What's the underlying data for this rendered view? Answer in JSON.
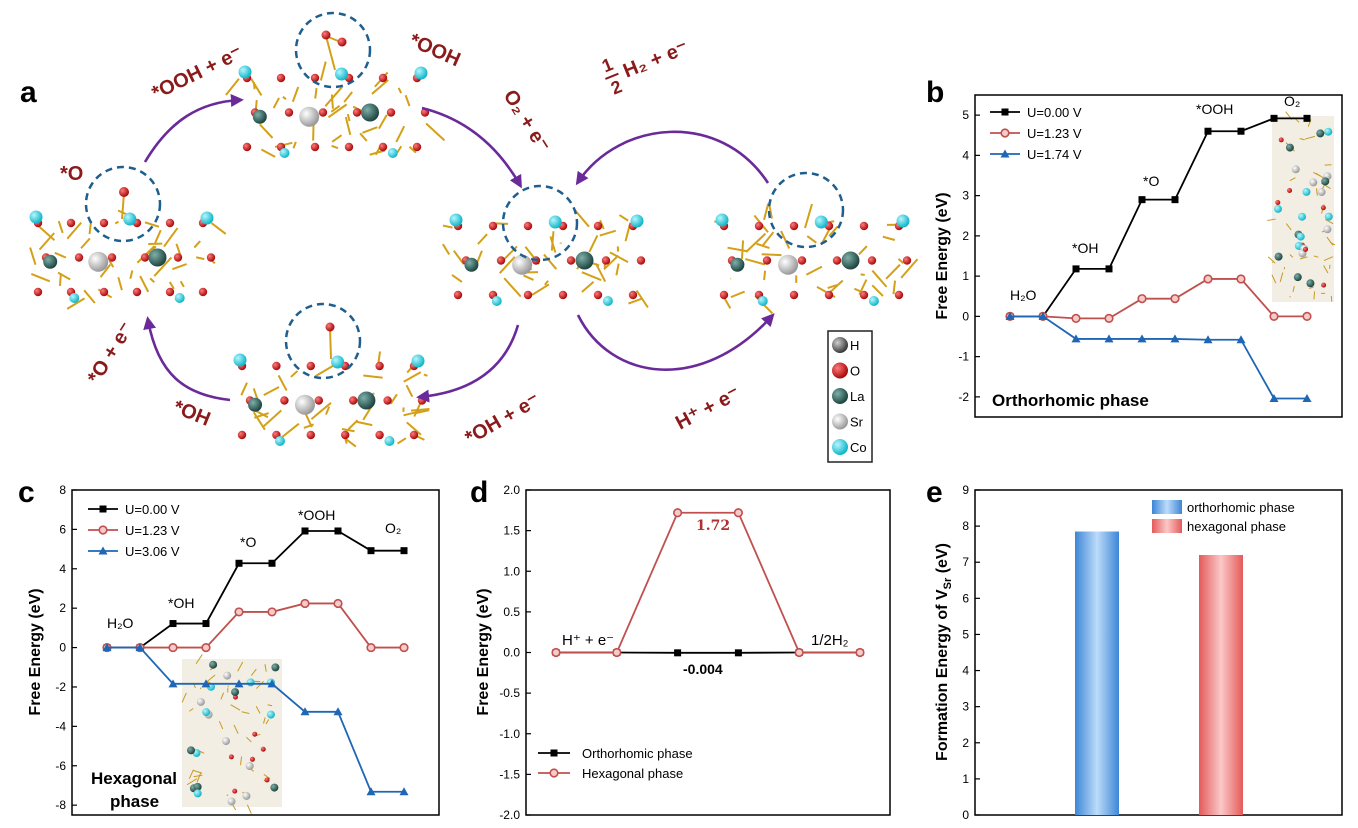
{
  "panel_labels": {
    "a": "a",
    "b": "b",
    "c": "c",
    "d": "d",
    "e": "e"
  },
  "colors": {
    "black_series": "#000000",
    "red_series": "#c0504d",
    "blue_series": "#1f66b5",
    "arrow": "#6a2a9a",
    "annotation_red": "#8b1a1a",
    "la_atom": "#2f5f5a",
    "sr_atom": "#c8c8c8",
    "co_atom": "#19d3e3",
    "o_atom": "#d81818",
    "bond": "#d4a017"
  },
  "panel_a": {
    "step_labels": {
      "ooh_plus_e_left": "*OOH + e⁻",
      "ooh_top": "*OOH",
      "o2_plus_e": "O₂ + e⁻",
      "o_left": "*O",
      "o_plus_e": "*O + e⁻",
      "oh_bottom": "*OH",
      "oh_plus_e": "*OH + e⁻",
      "half_h2_num": "1",
      "half_h2_den": "2",
      "half_h2_rest": "H₂ + e⁻",
      "h_plus_e": "H⁺ + e⁻"
    },
    "legend": [
      {
        "symbol": "H",
        "color": "#6e6e6e"
      },
      {
        "symbol": "O",
        "color": "#d81818"
      },
      {
        "symbol": "La",
        "color": "#2f5f5a"
      },
      {
        "symbol": "Sr",
        "color": "#c8c8c8"
      },
      {
        "symbol": "Co",
        "color": "#19d3e3"
      }
    ]
  },
  "chart_data": [
    {
      "panel": "b",
      "type": "line",
      "ylabel": "Free Energy (eV)",
      "xlabel": "",
      "ylim": [
        -2.5,
        5.5
      ],
      "yticks": [
        -2,
        -1,
        0,
        1,
        2,
        3,
        4,
        5
      ],
      "x": [
        1,
        2,
        3,
        4,
        5,
        6,
        7,
        8,
        9,
        10
      ],
      "series": [
        {
          "name": "U=0.00 V",
          "color": "#000000",
          "marker": "square",
          "values": [
            0,
            0,
            1.18,
            1.18,
            2.9,
            2.9,
            4.6,
            4.6,
            4.92,
            4.92
          ]
        },
        {
          "name": "U=1.23 V",
          "color": "#c0504d",
          "marker": "circle",
          "values": [
            0,
            0,
            -0.05,
            -0.05,
            0.44,
            0.44,
            0.93,
            0.93,
            0,
            0
          ]
        },
        {
          "name": "U=1.74 V",
          "color": "#1f66b5",
          "marker": "triangle",
          "values": [
            0,
            0,
            -0.56,
            -0.56,
            -0.56,
            -0.56,
            -0.58,
            -0.58,
            -2.04,
            -2.04
          ]
        }
      ],
      "annotations": [
        "H₂O",
        "*OH",
        "*O",
        "*OOH",
        "O₂"
      ],
      "phase_label": "Orthorhomic phase",
      "legend_position": "top-left"
    },
    {
      "panel": "c",
      "type": "line",
      "ylabel": "Free Energy (eV)",
      "xlabel": "",
      "ylim": [
        -8.5,
        8
      ],
      "yticks": [
        -8,
        -6,
        -4,
        -2,
        0,
        2,
        4,
        6,
        8
      ],
      "x": [
        1,
        2,
        3,
        4,
        5,
        6,
        7,
        8,
        9,
        10
      ],
      "series": [
        {
          "name": "U=0.00 V",
          "color": "#000000",
          "marker": "square",
          "values": [
            0,
            0,
            1.22,
            1.22,
            4.28,
            4.28,
            5.92,
            5.92,
            4.92,
            4.92
          ]
        },
        {
          "name": "U=1.23 V",
          "color": "#c0504d",
          "marker": "circle",
          "values": [
            0,
            0,
            0,
            0,
            1.81,
            1.81,
            2.24,
            2.24,
            0,
            0
          ]
        },
        {
          "name": "U=3.06 V",
          "color": "#1f66b5",
          "marker": "triangle",
          "values": [
            0,
            0,
            -1.84,
            -1.84,
            -1.84,
            -1.84,
            -3.26,
            -3.26,
            -7.32,
            -7.32
          ]
        }
      ],
      "annotations": [
        "H₂O",
        "*OH",
        "*O",
        "*OOH",
        "O₂"
      ],
      "phase_label_line1": "Hexagonal",
      "phase_label_line2": "phase",
      "legend_position": "top-left"
    },
    {
      "panel": "d",
      "type": "line",
      "ylabel": "Free Energy (eV)",
      "xlabel": "",
      "ylim": [
        -2.0,
        2.0
      ],
      "yticks": [
        "2.0",
        "1.5",
        "1.0",
        "0.5",
        "0.0",
        "-0.5",
        "-1.0",
        "-1.5",
        "-2.0"
      ],
      "series": [
        {
          "name": "Orthorhomic phase",
          "color": "#000000",
          "marker": "square",
          "x": [
            1,
            2,
            3,
            4,
            5,
            6
          ],
          "values": [
            0,
            0,
            -0.004,
            -0.004,
            0,
            0
          ]
        },
        {
          "name": "Hexagonal phase",
          "color": "#c0504d",
          "marker": "circle",
          "x": [
            1,
            2,
            3,
            4,
            5,
            6
          ],
          "values": [
            0,
            0,
            1.72,
            1.72,
            0,
            0
          ]
        }
      ],
      "annotations": {
        "left": "H⁺ + e⁻",
        "right": "1/2H₂",
        "peak": "1.72",
        "dip": "-0.004"
      },
      "legend_position": "bottom-left"
    },
    {
      "panel": "e",
      "type": "bar",
      "ylabel": "Formation Energy of V",
      "ylabel_sub": "Sr",
      "ylabel_unit": " (eV)",
      "xlabel": "",
      "ylim": [
        0,
        9
      ],
      "yticks": [
        0,
        1,
        2,
        3,
        4,
        5,
        6,
        7,
        8,
        9
      ],
      "categories": [
        "orthorhomic phase",
        "hexagonal phase"
      ],
      "values": [
        7.85,
        7.2
      ],
      "colors": [
        "#5fa6e6",
        "#ee8282"
      ],
      "legend_position": "top-right"
    }
  ]
}
